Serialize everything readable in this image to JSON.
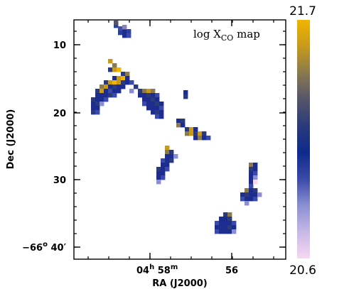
{
  "chart_data": {
    "type": "heatmap",
    "title": "log X",
    "title_sub": "CO",
    "title_suffix": "map",
    "xlabel": "RA (J2000)",
    "ylabel": "Dec (J2000)",
    "x_ticks": [
      {
        "main": "04",
        "h": "h",
        "mid": " 58",
        "m": "m"
      },
      {
        "main": "56"
      }
    ],
    "y_ticks": [
      "10",
      "20",
      "30"
    ],
    "y_tick_last": {
      "main": "−66",
      "deg": "o",
      "rest": " 40′"
    },
    "colorbar": {
      "min_label": "20.6",
      "max_label": "21.7",
      "range": [
        20.6,
        21.7
      ],
      "colors": [
        "#f6d8f2",
        "#c7b8e6",
        "#8b8fd2",
        "#3a4aa8",
        "#0e2a8c",
        "#2b3a7a",
        "#55556a",
        "#8a7a4e",
        "#c79a1c",
        "#f2b400"
      ]
    },
    "regions": [
      {
        "name": "north-edge-clump",
        "cells": [
          [
            160,
            33,
            "#263f9a"
          ],
          [
            166,
            37,
            "#3d4fa7"
          ],
          [
            172,
            41,
            "#1c2c8e"
          ],
          [
            178,
            41,
            "#2d3f9f"
          ],
          [
            166,
            43,
            "#2a3c9c"
          ],
          [
            172,
            47,
            "#1d2d8f"
          ],
          [
            178,
            47,
            "#3a4aa8"
          ],
          [
            160,
            29,
            "#556"
          ],
          [
            172,
            35,
            "#8a83b8"
          ]
        ]
      },
      {
        "name": "western-filament",
        "cells": [
          [
            152,
            83,
            "#c79a1c"
          ],
          [
            158,
            89,
            "#8a7a4e"
          ],
          [
            152,
            95,
            "#2b3a7a"
          ],
          [
            158,
            95,
            "#c79a1c"
          ],
          [
            164,
            95,
            "#f2b400"
          ],
          [
            170,
            101,
            "#2b3a7a"
          ],
          [
            176,
            101,
            "#8a7a4e"
          ],
          [
            158,
            107,
            "#1d2d8f"
          ],
          [
            164,
            107,
            "#c79a1c"
          ],
          [
            170,
            107,
            "#f2b400"
          ],
          [
            176,
            107,
            "#1d2d8f"
          ],
          [
            146,
            113,
            "#2b3a7a"
          ],
          [
            152,
            113,
            "#c79a1c"
          ],
          [
            158,
            113,
            "#f2b400"
          ],
          [
            164,
            113,
            "#c79a1c"
          ],
          [
            170,
            113,
            "#2b3a7a"
          ],
          [
            176,
            113,
            "#1d2d8f"
          ],
          [
            182,
            113,
            "#3a4aa8"
          ],
          [
            140,
            119,
            "#8a7a4e"
          ],
          [
            146,
            119,
            "#c79a1c"
          ],
          [
            152,
            119,
            "#1d2d8f"
          ],
          [
            158,
            119,
            "#2b3a7a"
          ],
          [
            164,
            119,
            "#1d2d8f"
          ],
          [
            170,
            119,
            "#1d2d8f"
          ],
          [
            134,
            125,
            "#2b3a7a"
          ],
          [
            140,
            125,
            "#c79a1c"
          ],
          [
            146,
            125,
            "#1d2d8f"
          ],
          [
            152,
            125,
            "#3a4aa8"
          ],
          [
            158,
            125,
            "#1d2d8f"
          ],
          [
            164,
            125,
            "#1d2d8f"
          ],
          [
            134,
            131,
            "#1d2d8f"
          ],
          [
            140,
            131,
            "#1d2d8f"
          ],
          [
            146,
            131,
            "#1d2d8f"
          ],
          [
            152,
            131,
            "#2b3a7a"
          ],
          [
            158,
            131,
            "#3a4aa8"
          ],
          [
            128,
            137,
            "#2b3a7a"
          ],
          [
            134,
            137,
            "#1d2d8f"
          ],
          [
            140,
            137,
            "#1d2d8f"
          ],
          [
            146,
            137,
            "#3a4aa8"
          ],
          [
            128,
            143,
            "#1d2d8f"
          ],
          [
            134,
            143,
            "#2b3a7a"
          ],
          [
            140,
            143,
            "#8b8fd2"
          ],
          [
            128,
            149,
            "#1d2d8f"
          ],
          [
            134,
            149,
            "#1d2d8f"
          ],
          [
            128,
            155,
            "#2b3a7a"
          ],
          [
            134,
            155,
            "#3a4aa8"
          ]
        ]
      },
      {
        "name": "central-clump",
        "cells": [
          [
            194,
            125,
            "#2b3a7a"
          ],
          [
            200,
            125,
            "#8a7a4e"
          ],
          [
            206,
            125,
            "#c79a1c"
          ],
          [
            212,
            125,
            "#8a7a4e"
          ],
          [
            194,
            131,
            "#1d2d8f"
          ],
          [
            200,
            131,
            "#1d2d8f"
          ],
          [
            206,
            131,
            "#2b3a7a"
          ],
          [
            212,
            131,
            "#1d2d8f"
          ],
          [
            218,
            131,
            "#3a4aa8"
          ],
          [
            200,
            137,
            "#1d2d8f"
          ],
          [
            206,
            137,
            "#1d2d8f"
          ],
          [
            212,
            137,
            "#2b3a7a"
          ],
          [
            218,
            137,
            "#1d2d8f"
          ],
          [
            200,
            143,
            "#3a4aa8"
          ],
          [
            206,
            143,
            "#1d2d8f"
          ],
          [
            212,
            143,
            "#1d2d8f"
          ],
          [
            218,
            143,
            "#2b3a7a"
          ],
          [
            224,
            143,
            "#1d2d8f"
          ],
          [
            206,
            149,
            "#1d2d8f"
          ],
          [
            212,
            149,
            "#1d2d8f"
          ],
          [
            218,
            149,
            "#1d2d8f"
          ],
          [
            224,
            149,
            "#3a4aa8"
          ],
          [
            212,
            155,
            "#1d2d8f"
          ],
          [
            218,
            155,
            "#2b3a7a"
          ],
          [
            224,
            155,
            "#1d2d8f"
          ],
          [
            218,
            161,
            "#3a4aa8"
          ],
          [
            224,
            161,
            "#1d2d8f"
          ],
          [
            182,
            125,
            "#8b8fd2"
          ],
          [
            188,
            119,
            "#2b3a7a"
          ]
        ]
      },
      {
        "name": "small-dot",
        "cells": [
          [
            258,
            127,
            "#1d2d8f"
          ],
          [
            258,
            133,
            "#2b3a7a"
          ]
        ]
      },
      {
        "name": "east-filament",
        "cells": [
          [
            248,
            167,
            "#1d2d8f"
          ],
          [
            254,
            167,
            "#2b3a7a"
          ],
          [
            248,
            173,
            "#8a7a4e"
          ],
          [
            254,
            173,
            "#1d2d8f"
          ],
          [
            260,
            179,
            "#2b3a7a"
          ],
          [
            266,
            179,
            "#c79a1c"
          ],
          [
            272,
            179,
            "#1d2d8f"
          ],
          [
            260,
            185,
            "#8a7a4e"
          ],
          [
            266,
            185,
            "#c79a1c"
          ],
          [
            272,
            185,
            "#2b3a7a"
          ],
          [
            278,
            185,
            "#c79a1c"
          ],
          [
            284,
            185,
            "#2b3a7a"
          ],
          [
            272,
            191,
            "#1d2d8f"
          ],
          [
            278,
            191,
            "#8a7a4e"
          ],
          [
            284,
            191,
            "#1d2d8f"
          ],
          [
            290,
            191,
            "#3a4aa8"
          ]
        ]
      },
      {
        "name": "south-clump",
        "cells": [
          [
            232,
            205,
            "#c79a1c"
          ],
          [
            232,
            211,
            "#8a7a4e"
          ],
          [
            238,
            211,
            "#2b3a7a"
          ],
          [
            232,
            217,
            "#1d2d8f"
          ],
          [
            238,
            217,
            "#1d2d8f"
          ],
          [
            226,
            223,
            "#3a4aa8"
          ],
          [
            232,
            223,
            "#1d2d8f"
          ],
          [
            238,
            223,
            "#2b3a7a"
          ],
          [
            226,
            229,
            "#1d2d8f"
          ],
          [
            232,
            229,
            "#1d2d8f"
          ],
          [
            220,
            235,
            "#2b3a7a"
          ],
          [
            226,
            235,
            "#1d2d8f"
          ],
          [
            232,
            235,
            "#3a4aa8"
          ],
          [
            220,
            241,
            "#1d2d8f"
          ],
          [
            226,
            241,
            "#1d2d8f"
          ],
          [
            220,
            247,
            "#1d2d8f"
          ],
          [
            226,
            247,
            "#3a4aa8"
          ],
          [
            220,
            253,
            "#8b8fd2"
          ],
          [
            244,
            217,
            "#8b8fd2"
          ]
        ]
      },
      {
        "name": "southeast-clump",
        "cells": [
          [
            350,
            229,
            "#8a7a4e"
          ],
          [
            356,
            229,
            "#1d2d8f"
          ],
          [
            350,
            235,
            "#2b3a7a"
          ],
          [
            356,
            235,
            "#1d2d8f"
          ],
          [
            350,
            241,
            "#1d2d8f"
          ],
          [
            356,
            241,
            "#3a4aa8"
          ],
          [
            350,
            247,
            "#1d2d8f"
          ],
          [
            356,
            247,
            "#8b8fd2"
          ],
          [
            350,
            253,
            "#1d2d8f"
          ],
          [
            350,
            259,
            "#3a4aa8"
          ],
          [
            344,
            265,
            "#8a7a4e"
          ],
          [
            350,
            265,
            "#1d2d8f"
          ],
          [
            356,
            265,
            "#2b3a7a"
          ],
          [
            338,
            271,
            "#1d2d8f"
          ],
          [
            344,
            271,
            "#2b3a7a"
          ],
          [
            350,
            271,
            "#1d2d8f"
          ],
          [
            356,
            271,
            "#1d2d8f"
          ],
          [
            362,
            271,
            "#8b8fd2"
          ],
          [
            338,
            277,
            "#3a4aa8"
          ],
          [
            344,
            277,
            "#1d2d8f"
          ],
          [
            350,
            277,
            "#1d2d8f"
          ],
          [
            356,
            277,
            "#3a4aa8"
          ],
          [
            344,
            283,
            "#8b8fd2"
          ],
          [
            356,
            253,
            "#f6d8f2"
          ]
        ]
      },
      {
        "name": "south-bottom-clump",
        "cells": [
          [
            314,
            299,
            "#2b3a7a"
          ],
          [
            320,
            299,
            "#8a7a4e"
          ],
          [
            308,
            305,
            "#1d2d8f"
          ],
          [
            314,
            305,
            "#1d2d8f"
          ],
          [
            320,
            305,
            "#2b3a7a"
          ],
          [
            302,
            311,
            "#3a4aa8"
          ],
          [
            308,
            311,
            "#1d2d8f"
          ],
          [
            314,
            311,
            "#1d2d8f"
          ],
          [
            320,
            311,
            "#1d2d8f"
          ],
          [
            326,
            311,
            "#3a4aa8"
          ],
          [
            302,
            317,
            "#1d2d8f"
          ],
          [
            308,
            317,
            "#1d2d8f"
          ],
          [
            314,
            317,
            "#1d2d8f"
          ],
          [
            320,
            317,
            "#2b3a7a"
          ],
          [
            326,
            317,
            "#1d2d8f"
          ],
          [
            302,
            323,
            "#3a4aa8"
          ],
          [
            308,
            323,
            "#1d2d8f"
          ],
          [
            314,
            323,
            "#1d2d8f"
          ],
          [
            320,
            323,
            "#1d2d8f"
          ],
          [
            326,
            323,
            "#8b8fd2"
          ]
        ]
      }
    ]
  }
}
